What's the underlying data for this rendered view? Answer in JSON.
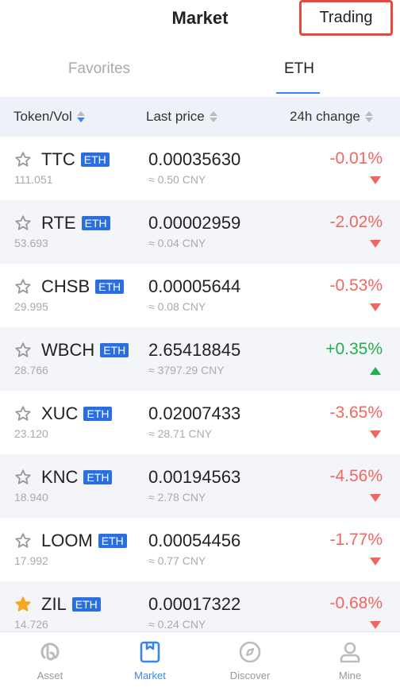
{
  "header": {
    "title": "Market",
    "trading_label": "Trading"
  },
  "tabs": [
    {
      "label": "Favorites"
    },
    {
      "label": "ETH"
    }
  ],
  "columns": {
    "token": "Token/Vol",
    "price": "Last price",
    "change": "24h change"
  },
  "rows": [
    {
      "symbol": "TTC",
      "badge": "ETH",
      "vol": "111.051",
      "price": "0.00035630",
      "cny": "≈ 0.50 CNY",
      "change": "-0.01%",
      "dir": "down",
      "fav": false
    },
    {
      "symbol": "RTE",
      "badge": "ETH",
      "vol": "53.693",
      "price": "0.00002959",
      "cny": "≈ 0.04 CNY",
      "change": "-2.02%",
      "dir": "down",
      "fav": false
    },
    {
      "symbol": "CHSB",
      "badge": "ETH",
      "vol": "29.995",
      "price": "0.00005644",
      "cny": "≈ 0.08 CNY",
      "change": "-0.53%",
      "dir": "down",
      "fav": false
    },
    {
      "symbol": "WBCH",
      "badge": "ETH",
      "vol": "28.766",
      "price": "2.65418845",
      "cny": "≈ 3797.29 CNY",
      "change": "+0.35%",
      "dir": "up",
      "fav": false
    },
    {
      "symbol": "XUC",
      "badge": "ETH",
      "vol": "23.120",
      "price": "0.02007433",
      "cny": "≈ 28.71 CNY",
      "change": "-3.65%",
      "dir": "down",
      "fav": false
    },
    {
      "symbol": "KNC",
      "badge": "ETH",
      "vol": "18.940",
      "price": "0.00194563",
      "cny": "≈ 2.78 CNY",
      "change": "-4.56%",
      "dir": "down",
      "fav": false
    },
    {
      "symbol": "LOOM",
      "badge": "ETH",
      "vol": "17.992",
      "price": "0.00054456",
      "cny": "≈ 0.77 CNY",
      "change": "-1.77%",
      "dir": "down",
      "fav": false
    },
    {
      "symbol": "ZIL",
      "badge": "ETH",
      "vol": "14.726",
      "price": "0.00017322",
      "cny": "≈ 0.24 CNY",
      "change": "-0.68%",
      "dir": "down",
      "fav": true
    }
  ],
  "nav": [
    {
      "label": "Asset",
      "icon": "asset-icon",
      "active": false
    },
    {
      "label": "Market",
      "icon": "market-icon",
      "active": true
    },
    {
      "label": "Discover",
      "icon": "compass-icon",
      "active": false
    },
    {
      "label": "Mine",
      "icon": "user-icon",
      "active": false
    }
  ],
  "colors": {
    "accent": "#3a86e8",
    "negative": "#f0675f",
    "positive": "#22b04b",
    "badge": "#2a6fe0",
    "favorite": "#f5a623"
  }
}
